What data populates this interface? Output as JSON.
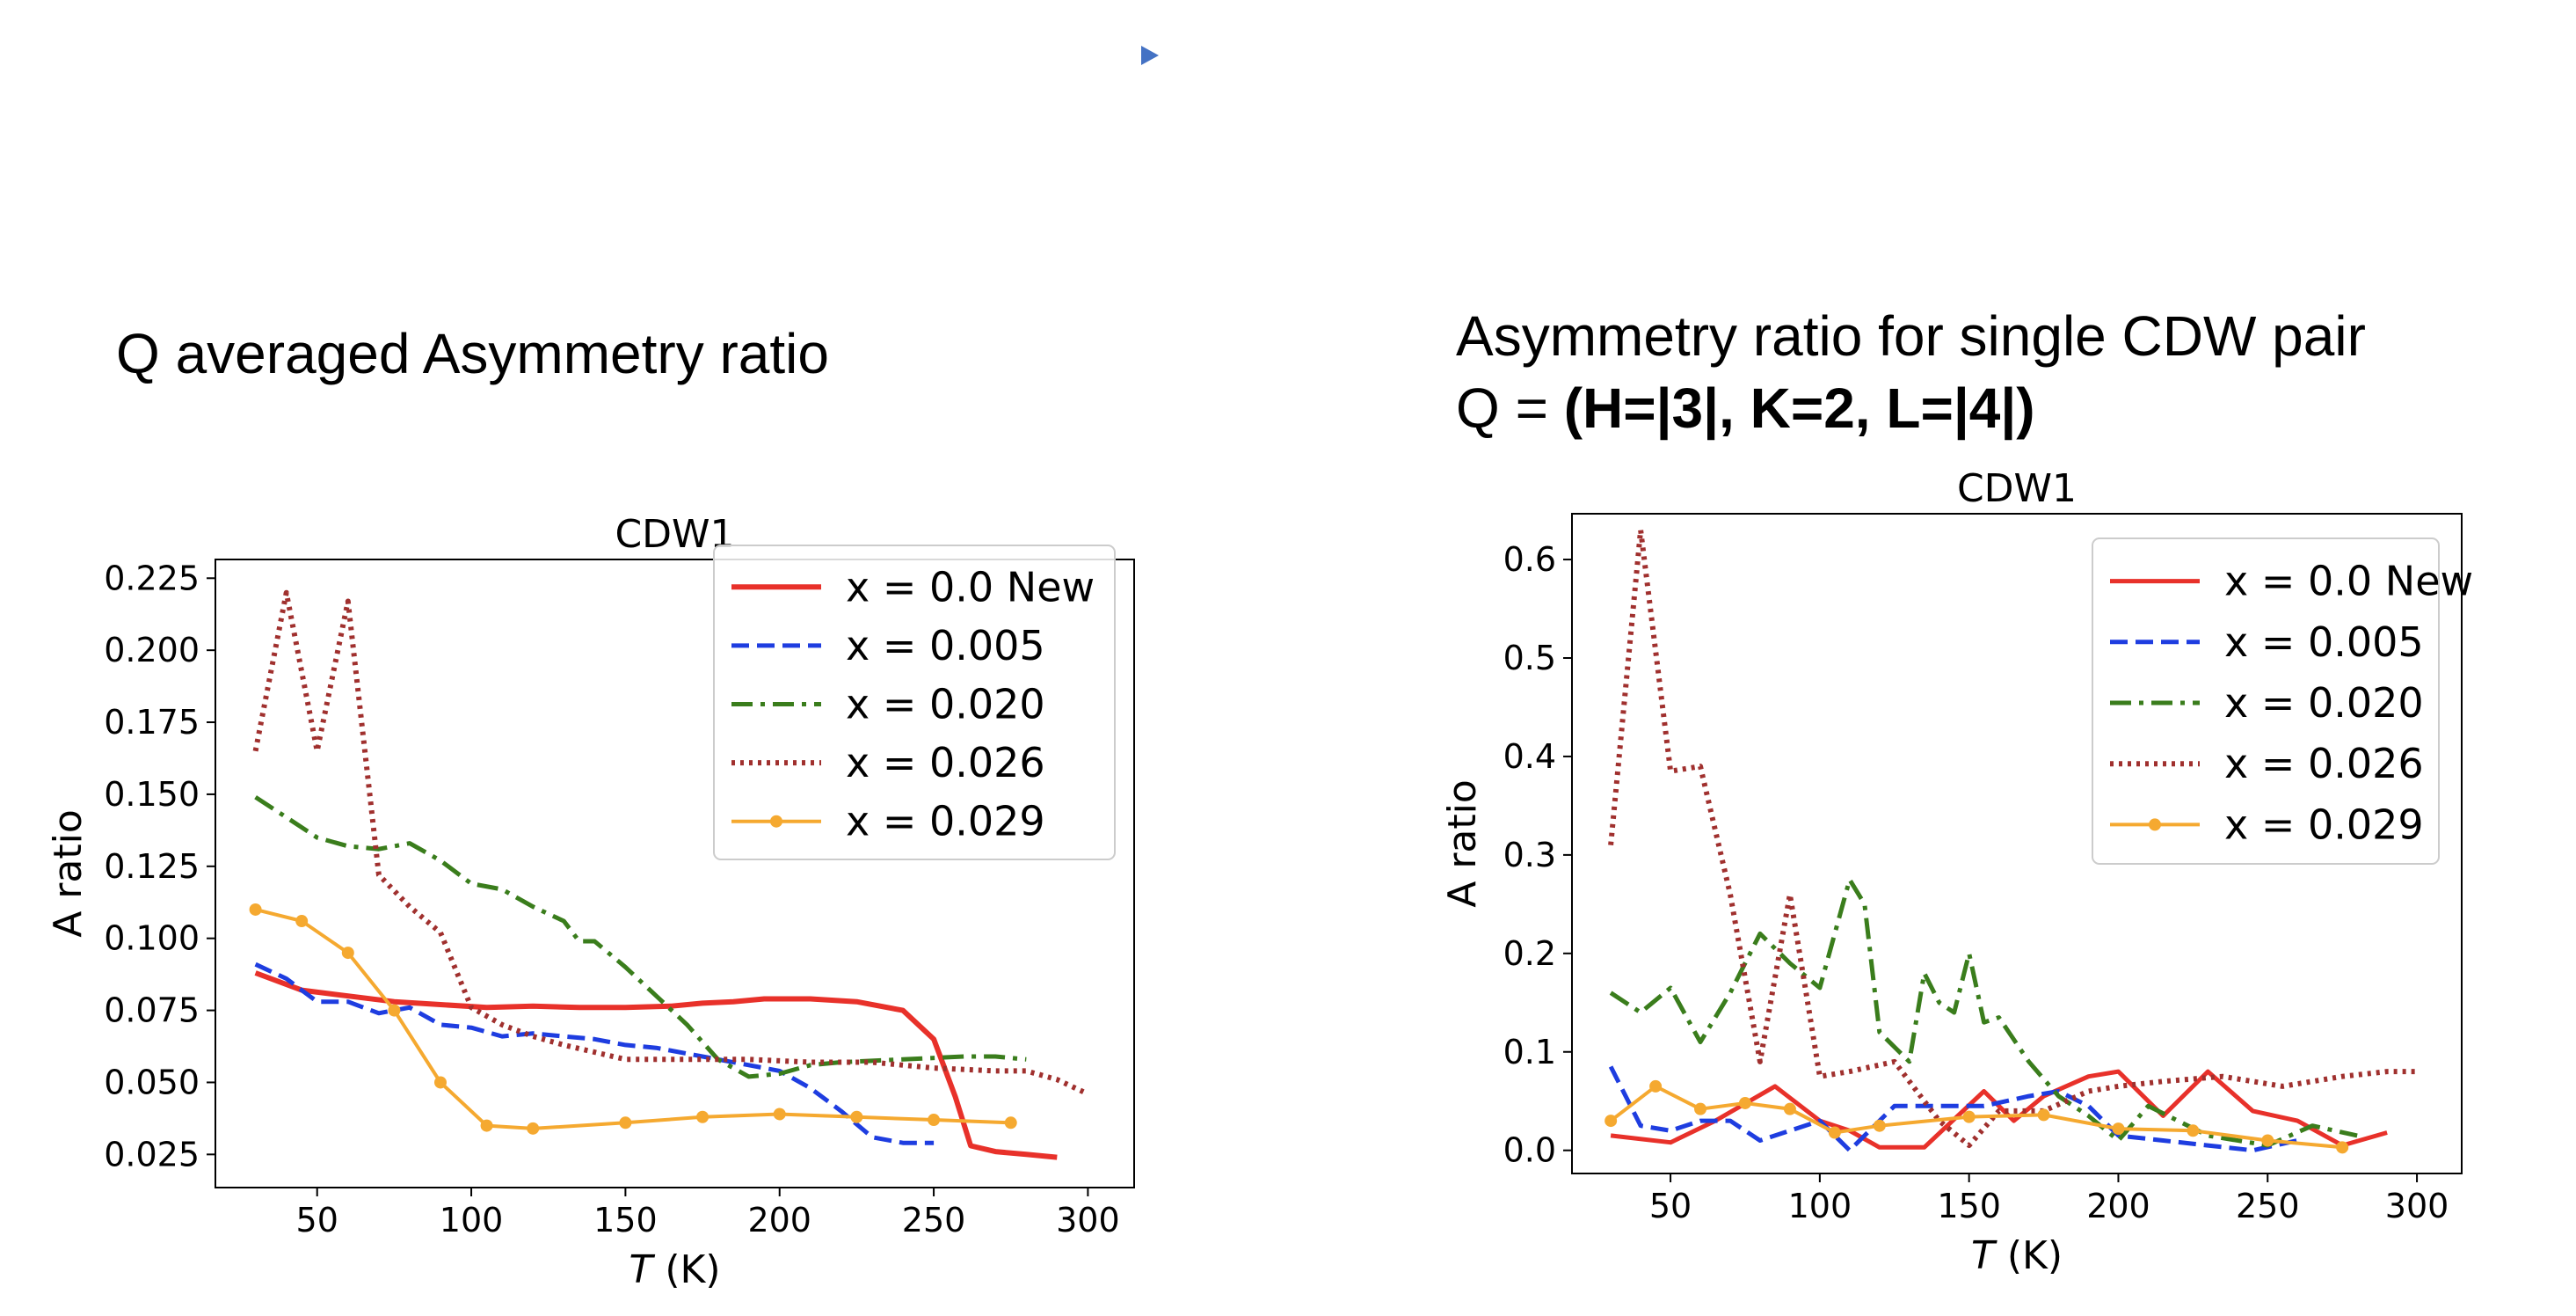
{
  "slide": {
    "left_heading": "Q averaged Asymmetry ratio",
    "right_heading_line1": "Asymmetry ratio for single CDW pair",
    "right_heading_line2_prefix": "Q = ",
    "right_heading_line2_bold": "(H=|3|, K=2, L=|4|)"
  },
  "chart_data": [
    {
      "type": "line",
      "title": "CDW1",
      "xlabel_italic": "T",
      "xlabel_unit": " (K)",
      "ylabel": "A ratio",
      "xlim": [
        17,
        315
      ],
      "ylim": [
        0.0135,
        0.2315
      ],
      "xticks": [
        50,
        100,
        150,
        200,
        250,
        300
      ],
      "yticks": [
        0.025,
        0.05,
        0.075,
        0.1,
        0.125,
        0.15,
        0.175,
        0.2,
        0.225
      ],
      "ytick_labels": [
        "0.025",
        "0.050",
        "0.075",
        "0.100",
        "0.125",
        "0.150",
        "0.175",
        "0.200",
        "0.225"
      ],
      "legend_position": "upper-right",
      "series": [
        {
          "name": "x = 0.0 New",
          "color": "#e8312a",
          "style": "solid",
          "width": 6,
          "marker": false,
          "x": [
            30,
            45,
            60,
            75,
            90,
            105,
            120,
            135,
            150,
            165,
            175,
            185,
            195,
            210,
            225,
            240,
            250,
            257,
            262,
            270,
            280,
            290
          ],
          "y": [
            0.088,
            0.082,
            0.08,
            0.078,
            0.077,
            0.076,
            0.0765,
            0.076,
            0.076,
            0.0765,
            0.0775,
            0.078,
            0.079,
            0.079,
            0.078,
            0.075,
            0.065,
            0.045,
            0.028,
            0.026,
            0.025,
            0.024
          ]
        },
        {
          "name": "x = 0.005",
          "color": "#1e3de0",
          "style": "dashed",
          "width": 5,
          "marker": false,
          "x": [
            30,
            40,
            50,
            60,
            70,
            80,
            90,
            100,
            110,
            120,
            130,
            140,
            150,
            160,
            170,
            180,
            190,
            200,
            210,
            220,
            230,
            240,
            250
          ],
          "y": [
            0.091,
            0.086,
            0.078,
            0.078,
            0.074,
            0.076,
            0.07,
            0.069,
            0.066,
            0.067,
            0.066,
            0.065,
            0.063,
            0.062,
            0.06,
            0.058,
            0.056,
            0.054,
            0.048,
            0.04,
            0.031,
            0.029,
            0.029
          ]
        },
        {
          "name": "x = 0.020",
          "color": "#3a7d1c",
          "style": "dashdot",
          "width": 5,
          "marker": false,
          "x": [
            30,
            40,
            50,
            60,
            70,
            80,
            90,
            100,
            110,
            120,
            130,
            135,
            140,
            150,
            160,
            170,
            180,
            190,
            200,
            210,
            220,
            240,
            260,
            270,
            280
          ],
          "y": [
            0.149,
            0.142,
            0.135,
            0.132,
            0.131,
            0.133,
            0.127,
            0.119,
            0.117,
            0.111,
            0.106,
            0.099,
            0.099,
            0.09,
            0.08,
            0.07,
            0.058,
            0.052,
            0.053,
            0.056,
            0.057,
            0.058,
            0.059,
            0.059,
            0.058
          ]
        },
        {
          "name": "x = 0.026",
          "color": "#a0302e",
          "style": "dotted",
          "width": 6,
          "marker": false,
          "x": [
            30,
            40,
            50,
            60,
            70,
            80,
            90,
            100,
            110,
            120,
            130,
            150,
            170,
            190,
            210,
            230,
            250,
            270,
            280,
            290,
            300
          ],
          "y": [
            0.165,
            0.22,
            0.165,
            0.217,
            0.122,
            0.111,
            0.102,
            0.076,
            0.07,
            0.066,
            0.063,
            0.058,
            0.058,
            0.058,
            0.057,
            0.057,
            0.055,
            0.054,
            0.054,
            0.051,
            0.046
          ]
        },
        {
          "name": "x = 0.029",
          "color": "#f5a930",
          "style": "solid",
          "width": 4,
          "marker": true,
          "x": [
            30,
            45,
            60,
            75,
            90,
            105,
            120,
            150,
            175,
            200,
            225,
            250,
            275
          ],
          "y": [
            0.11,
            0.106,
            0.095,
            0.075,
            0.05,
            0.035,
            0.034,
            0.036,
            0.038,
            0.039,
            0.038,
            0.037,
            0.036
          ]
        }
      ]
    },
    {
      "type": "line",
      "title": "CDW1",
      "xlabel_italic": "T",
      "xlabel_unit": " (K)",
      "ylabel": "A ratio",
      "xlim": [
        17,
        315
      ],
      "ylim": [
        -0.0235,
        0.6465
      ],
      "xticks": [
        50,
        100,
        150,
        200,
        250,
        300
      ],
      "yticks": [
        0.0,
        0.1,
        0.2,
        0.3,
        0.4,
        0.5,
        0.6
      ],
      "ytick_labels": [
        "0.0",
        "0.1",
        "0.2",
        "0.3",
        "0.4",
        "0.5",
        "0.6"
      ],
      "legend_position": "upper-right",
      "series": [
        {
          "name": "x = 0.0 New",
          "color": "#e8312a",
          "style": "solid",
          "width": 5,
          "marker": false,
          "x": [
            30,
            50,
            65,
            85,
            100,
            110,
            120,
            135,
            155,
            165,
            175,
            190,
            200,
            215,
            230,
            245,
            260,
            275,
            290
          ],
          "y": [
            0.015,
            0.008,
            0.03,
            0.065,
            0.03,
            0.02,
            0.003,
            0.003,
            0.06,
            0.03,
            0.055,
            0.075,
            0.08,
            0.035,
            0.08,
            0.04,
            0.03,
            0.005,
            0.018
          ]
        },
        {
          "name": "x = 0.005",
          "color": "#1e3de0",
          "style": "dashed",
          "width": 5,
          "marker": false,
          "x": [
            30,
            40,
            50,
            60,
            70,
            80,
            90,
            100,
            110,
            125,
            140,
            155,
            170,
            180,
            190,
            200,
            215,
            230,
            245,
            260
          ],
          "y": [
            0.085,
            0.025,
            0.02,
            0.03,
            0.03,
            0.01,
            0.02,
            0.03,
            0.0,
            0.045,
            0.045,
            0.045,
            0.055,
            0.06,
            0.045,
            0.015,
            0.01,
            0.005,
            0.0,
            0.01
          ]
        },
        {
          "name": "x = 0.020",
          "color": "#3a7d1c",
          "style": "dashdot",
          "width": 5,
          "marker": false,
          "x": [
            30,
            40,
            50,
            60,
            70,
            80,
            90,
            100,
            110,
            115,
            120,
            130,
            135,
            140,
            145,
            150,
            155,
            160,
            170,
            180,
            190,
            200,
            210,
            230,
            250,
            265,
            280
          ],
          "y": [
            0.16,
            0.14,
            0.165,
            0.11,
            0.16,
            0.22,
            0.19,
            0.165,
            0.275,
            0.25,
            0.12,
            0.09,
            0.18,
            0.15,
            0.14,
            0.2,
            0.13,
            0.135,
            0.09,
            0.055,
            0.035,
            0.01,
            0.045,
            0.015,
            0.005,
            0.025,
            0.015
          ]
        },
        {
          "name": "x = 0.026",
          "color": "#a0302e",
          "style": "dotted",
          "width": 6,
          "marker": false,
          "x": [
            30,
            40,
            50,
            60,
            70,
            80,
            90,
            100,
            110,
            125,
            140,
            150,
            160,
            175,
            190,
            200,
            215,
            235,
            255,
            275,
            290,
            300
          ],
          "y": [
            0.31,
            0.63,
            0.385,
            0.39,
            0.26,
            0.09,
            0.26,
            0.075,
            0.08,
            0.09,
            0.03,
            0.005,
            0.04,
            0.04,
            0.06,
            0.065,
            0.07,
            0.075,
            0.065,
            0.075,
            0.08,
            0.08
          ]
        },
        {
          "name": "x = 0.029",
          "color": "#f5a930",
          "style": "solid",
          "width": 4,
          "marker": true,
          "x": [
            30,
            45,
            60,
            75,
            90,
            105,
            120,
            150,
            175,
            200,
            225,
            250,
            275
          ],
          "y": [
            0.03,
            0.065,
            0.042,
            0.048,
            0.042,
            0.018,
            0.025,
            0.034,
            0.036,
            0.022,
            0.02,
            0.01,
            0.003
          ]
        }
      ]
    }
  ]
}
